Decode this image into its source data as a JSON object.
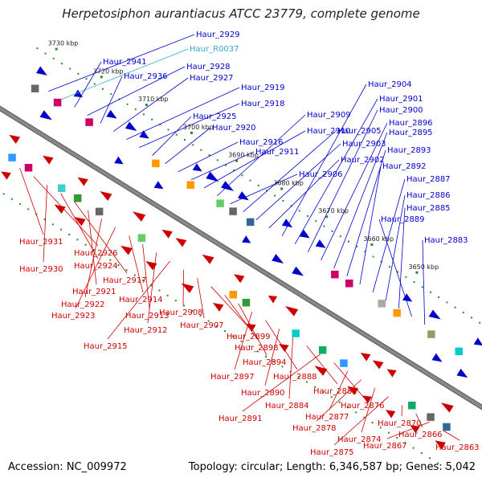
{
  "title": "Herpetosiphon aurantiacus ATCC 23779, complete genome",
  "footer": {
    "accession": "Accession: NC_009972",
    "summary": "Topology: circular; Length: 6,346,587 bp; Genes: 5,042"
  },
  "colors": {
    "forward": "#0000cc",
    "reverse": "#cc0000",
    "rna": "#33aacc",
    "backbone": "#888888"
  },
  "ticks": [
    "3730 kbp",
    "3720 kbp",
    "3710 kbp",
    "3700 kbp",
    "3690 kbp",
    "3680 kbp",
    "3670 kbp",
    "3660 kbp",
    "3650 kbp"
  ],
  "top_labels": [
    {
      "text": "Haur_2929",
      "type": "cds"
    },
    {
      "text": "Haur_R0037",
      "type": "rna"
    },
    {
      "text": "Haur_2941",
      "type": "cds"
    },
    {
      "text": "Haur_2928",
      "type": "cds"
    },
    {
      "text": "Haur_2936",
      "type": "cds"
    },
    {
      "text": "Haur_2927",
      "type": "cds"
    },
    {
      "text": "Haur_2919",
      "type": "cds"
    },
    {
      "text": "Haur_2918",
      "type": "cds"
    },
    {
      "text": "Haur_2925",
      "type": "cds"
    },
    {
      "text": "Haur_2920",
      "type": "cds"
    },
    {
      "text": "Haur_2916",
      "type": "cds"
    },
    {
      "text": "Haur_2911",
      "type": "cds"
    },
    {
      "text": "Haur_2910",
      "type": "cds"
    },
    {
      "text": "Haur_2909",
      "type": "cds"
    },
    {
      "text": "Haur_2906",
      "type": "cds"
    },
    {
      "text": "Haur_2905",
      "type": "cds"
    },
    {
      "text": "Haur_2903",
      "type": "cds"
    },
    {
      "text": "Haur_2902",
      "type": "cds"
    },
    {
      "text": "Haur_2904",
      "type": "cds"
    },
    {
      "text": "Haur_2901",
      "type": "cds"
    },
    {
      "text": "Haur_2900",
      "type": "cds"
    },
    {
      "text": "Haur_2896",
      "type": "cds"
    },
    {
      "text": "Haur_2895",
      "type": "cds"
    },
    {
      "text": "Haur_2893",
      "type": "cds"
    },
    {
      "text": "Haur_2892",
      "type": "cds"
    },
    {
      "text": "Haur_2887",
      "type": "cds"
    },
    {
      "text": "Haur_2886",
      "type": "cds"
    },
    {
      "text": "Haur_2885",
      "type": "cds"
    },
    {
      "text": "Haur_2889",
      "type": "cds"
    },
    {
      "text": "Haur_2883",
      "type": "cds"
    }
  ],
  "bottom_labels": [
    "Haur_2931",
    "Haur_2926",
    "Haur_2930",
    "Haur_2924",
    "Haur_2917",
    "Haur_2921",
    "Haur_2922",
    "Haur_2923",
    "Haur_2914",
    "Haur_2913",
    "Haur_2912",
    "Haur_2915",
    "Haur_2908",
    "Haur_2907",
    "Haur_2899",
    "Haur_2898",
    "Haur_2894",
    "Haur_2897",
    "Haur_2888",
    "Haur_2890",
    "Haur_2884",
    "Haur_2881",
    "Haur_2891",
    "Haur_2876",
    "Haur_2877",
    "Haur_2878",
    "Haur_2874",
    "Haur_2875",
    "Haur_2870",
    "Haur_2866",
    "Haur_2867",
    "Haur_2863"
  ]
}
